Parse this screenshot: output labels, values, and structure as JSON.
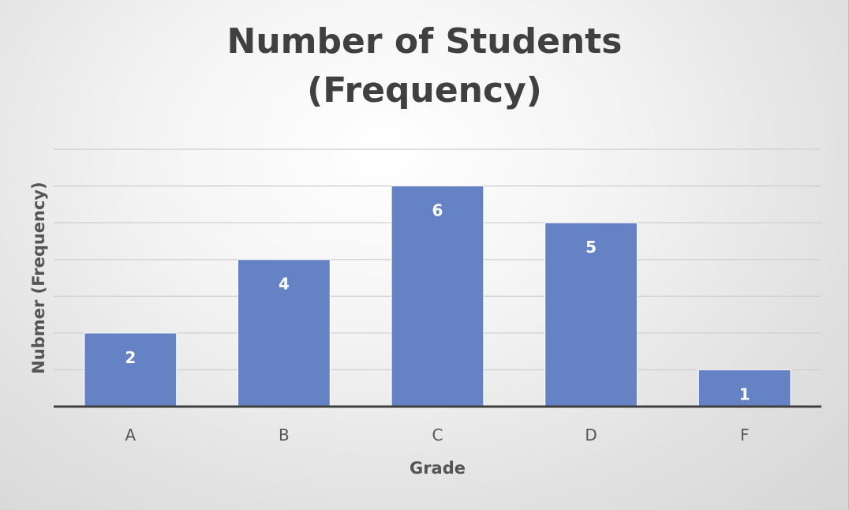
{
  "chart_data": {
    "type": "bar",
    "title": "Number of Students\n(Frequency)",
    "xlabel": "Grade",
    "ylabel": "Nubmer (Frequency)",
    "categories": [
      "A",
      "B",
      "C",
      "D",
      "F"
    ],
    "values": [
      2,
      4,
      6,
      5,
      1
    ],
    "ylim": [
      0,
      7
    ],
    "grid": true,
    "legend": "none",
    "data_labels": true,
    "bar_color": "#6582c5",
    "gridline_color": "#d0d0d0",
    "axis_color": "#404040"
  }
}
